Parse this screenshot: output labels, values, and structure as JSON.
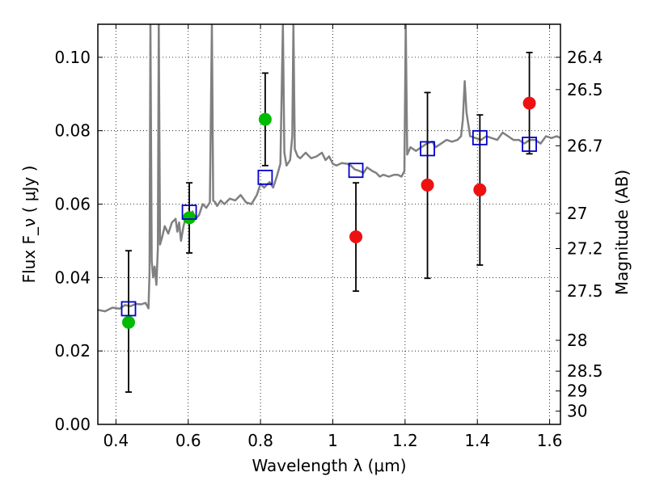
{
  "chart_data": {
    "type": "scatter",
    "xlabel": "Wavelength λ (μm)",
    "ylabel": "Flux F_ν ( μJy )",
    "y2label": "Magnitude (AB)",
    "xlim": [
      0.35,
      1.63
    ],
    "ylim": [
      0.0,
      0.109
    ],
    "grid": true,
    "x_ticks": [
      0.4,
      0.6,
      0.8,
      1.0,
      1.2,
      1.4,
      1.6
    ],
    "x_tick_labels": [
      "0.4",
      "0.6",
      "0.8",
      "1",
      "1.2",
      "1.4",
      "1.6"
    ],
    "y_ticks": [
      0.0,
      0.02,
      0.04,
      0.06,
      0.08,
      0.1
    ],
    "y_tick_labels": [
      "0.00",
      "0.02",
      "0.04",
      "0.06",
      "0.08",
      "0.10"
    ],
    "y2_ticks": [
      {
        "label": "26.4",
        "flux": 0.1
      },
      {
        "label": "26.5",
        "flux": 0.0912
      },
      {
        "label": "26.7",
        "flux": 0.0759
      },
      {
        "label": "27",
        "flux": 0.0575
      },
      {
        "label": "27.2",
        "flux": 0.0479
      },
      {
        "label": "27.5",
        "flux": 0.0363
      },
      {
        "label": "28",
        "flux": 0.0229
      },
      {
        "label": "28.5",
        "flux": 0.0145
      },
      {
        "label": "29",
        "flux": 0.0091
      },
      {
        "label": "30",
        "flux": 0.0036
      }
    ],
    "colors": {
      "green": "#00bb00",
      "red": "#ee1111",
      "blue": "#0000cc",
      "model": "#808080"
    },
    "series": [
      {
        "kind": "line",
        "points": [
          [
            0.35,
            0.0312
          ],
          [
            0.37,
            0.0308
          ],
          [
            0.39,
            0.0318
          ],
          [
            0.41,
            0.0315
          ],
          [
            0.425,
            0.0325
          ],
          [
            0.44,
            0.0322
          ],
          [
            0.455,
            0.0328
          ],
          [
            0.47,
            0.0327
          ],
          [
            0.482,
            0.0331
          ],
          [
            0.49,
            0.0316
          ],
          [
            0.493,
            0.0415
          ],
          [
            0.4955,
            0.109
          ],
          [
            0.499,
            0.0445
          ],
          [
            0.503,
            0.04
          ],
          [
            0.507,
            0.043
          ],
          [
            0.512,
            0.038
          ],
          [
            0.516,
            0.048
          ],
          [
            0.5185,
            0.109
          ],
          [
            0.522,
            0.049
          ],
          [
            0.528,
            0.051
          ],
          [
            0.535,
            0.054
          ],
          [
            0.545,
            0.052
          ],
          [
            0.555,
            0.055
          ],
          [
            0.565,
            0.056
          ],
          [
            0.57,
            0.0525
          ],
          [
            0.575,
            0.055
          ],
          [
            0.58,
            0.05
          ],
          [
            0.587,
            0.054
          ],
          [
            0.595,
            0.057
          ],
          [
            0.605,
            0.0565
          ],
          [
            0.612,
            0.058
          ],
          [
            0.62,
            0.056
          ],
          [
            0.63,
            0.057
          ],
          [
            0.64,
            0.06
          ],
          [
            0.65,
            0.059
          ],
          [
            0.66,
            0.0605
          ],
          [
            0.6655,
            0.109
          ],
          [
            0.669,
            0.061
          ],
          [
            0.675,
            0.0605
          ],
          [
            0.68,
            0.0595
          ],
          [
            0.69,
            0.061
          ],
          [
            0.7,
            0.06
          ],
          [
            0.715,
            0.0615
          ],
          [
            0.73,
            0.061
          ],
          [
            0.745,
            0.0625
          ],
          [
            0.76,
            0.0605
          ],
          [
            0.775,
            0.06
          ],
          [
            0.79,
            0.0625
          ],
          [
            0.8,
            0.0655
          ],
          [
            0.81,
            0.0645
          ],
          [
            0.825,
            0.066
          ],
          [
            0.835,
            0.0645
          ],
          [
            0.845,
            0.0675
          ],
          [
            0.855,
            0.071
          ],
          [
            0.862,
            0.109
          ],
          [
            0.866,
            0.074
          ],
          [
            0.872,
            0.0705
          ],
          [
            0.882,
            0.072
          ],
          [
            0.888,
            0.0785
          ],
          [
            0.891,
            0.109
          ],
          [
            0.895,
            0.075
          ],
          [
            0.903,
            0.073
          ],
          [
            0.91,
            0.0725
          ],
          [
            0.925,
            0.074
          ],
          [
            0.94,
            0.0725
          ],
          [
            0.955,
            0.073
          ],
          [
            0.97,
            0.074
          ],
          [
            0.98,
            0.072
          ],
          [
            0.99,
            0.073
          ],
          [
            1.0,
            0.071
          ],
          [
            1.01,
            0.0705
          ],
          [
            1.025,
            0.0712
          ],
          [
            1.04,
            0.071
          ],
          [
            1.05,
            0.0705
          ],
          [
            1.06,
            0.0695
          ],
          [
            1.075,
            0.069
          ],
          [
            1.085,
            0.0685
          ],
          [
            1.095,
            0.07
          ],
          [
            1.11,
            0.069
          ],
          [
            1.12,
            0.0685
          ],
          [
            1.13,
            0.0675
          ],
          [
            1.14,
            0.068
          ],
          [
            1.155,
            0.0675
          ],
          [
            1.17,
            0.068
          ],
          [
            1.18,
            0.068
          ],
          [
            1.19,
            0.0675
          ],
          [
            1.198,
            0.069
          ],
          [
            1.202,
            0.109
          ],
          [
            1.206,
            0.0735
          ],
          [
            1.215,
            0.0755
          ],
          [
            1.23,
            0.0745
          ],
          [
            1.245,
            0.0755
          ],
          [
            1.26,
            0.0765
          ],
          [
            1.275,
            0.077
          ],
          [
            1.285,
            0.0755
          ],
          [
            1.3,
            0.0765
          ],
          [
            1.315,
            0.0775
          ],
          [
            1.33,
            0.077
          ],
          [
            1.345,
            0.0775
          ],
          [
            1.355,
            0.0785
          ],
          [
            1.36,
            0.083
          ],
          [
            1.365,
            0.0935
          ],
          [
            1.37,
            0.085
          ],
          [
            1.38,
            0.0785
          ],
          [
            1.395,
            0.078
          ],
          [
            1.41,
            0.0775
          ],
          [
            1.425,
            0.0785
          ],
          [
            1.44,
            0.078
          ],
          [
            1.455,
            0.0775
          ],
          [
            1.47,
            0.0795
          ],
          [
            1.485,
            0.0785
          ],
          [
            1.5,
            0.0775
          ],
          [
            1.515,
            0.0775
          ],
          [
            1.53,
            0.0765
          ],
          [
            1.545,
            0.0775
          ],
          [
            1.56,
            0.0775
          ],
          [
            1.575,
            0.0765
          ],
          [
            1.59,
            0.0785
          ],
          [
            1.605,
            0.078
          ],
          [
            1.62,
            0.0785
          ],
          [
            1.63,
            0.078
          ]
        ]
      },
      {
        "kind": "points",
        "color": "green",
        "points": [
          {
            "x": 0.435,
            "y": 0.0278,
            "yerr_low": 0.0088,
            "yerr_high": 0.0473
          },
          {
            "x": 0.603,
            "y": 0.0563,
            "yerr_low": 0.0467,
            "yerr_high": 0.0658
          },
          {
            "x": 0.813,
            "y": 0.0831,
            "yerr_low": 0.0705,
            "yerr_high": 0.0957
          }
        ]
      },
      {
        "kind": "points",
        "color": "red",
        "points": [
          {
            "x": 1.064,
            "y": 0.0511,
            "yerr_low": 0.0363,
            "yerr_high": 0.0658
          },
          {
            "x": 1.262,
            "y": 0.0652,
            "yerr_low": 0.0398,
            "yerr_high": 0.0904
          },
          {
            "x": 1.407,
            "y": 0.0639,
            "yerr_low": 0.0434,
            "yerr_high": 0.0843
          },
          {
            "x": 1.544,
            "y": 0.0875,
            "yerr_low": 0.0737,
            "yerr_high": 0.1013
          }
        ]
      },
      {
        "kind": "open-squares",
        "color": "blue",
        "points": [
          {
            "x": 0.435,
            "y": 0.0315
          },
          {
            "x": 0.603,
            "y": 0.0578
          },
          {
            "x": 0.813,
            "y": 0.0673
          },
          {
            "x": 1.064,
            "y": 0.0692
          },
          {
            "x": 1.262,
            "y": 0.0751
          },
          {
            "x": 1.407,
            "y": 0.0781
          },
          {
            "x": 1.544,
            "y": 0.0763
          }
        ]
      }
    ]
  }
}
